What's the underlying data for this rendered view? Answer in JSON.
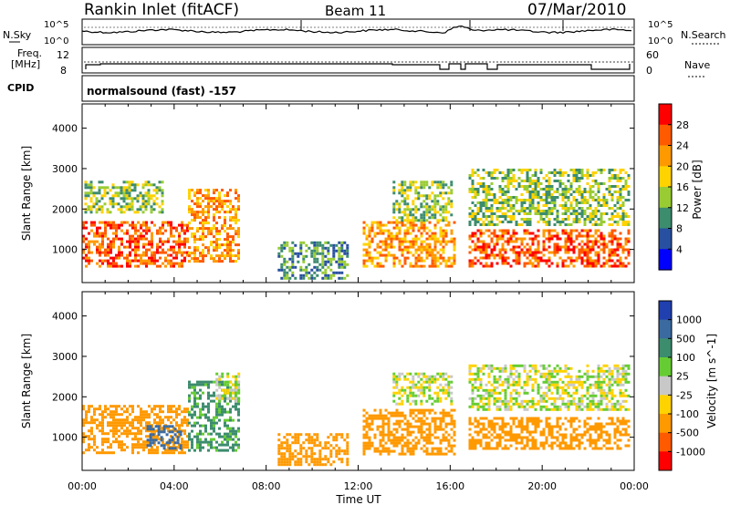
{
  "header": {
    "station": "Rankin Inlet (fitACF)",
    "beam": "Beam 11",
    "date": "07/Mar/2010"
  },
  "noise_panel": {
    "left_label": "N.Sky",
    "left_ticks": [
      "10^5",
      "10^0"
    ],
    "right_ticks": [
      "10^5",
      "10^0"
    ],
    "right_label": "N.Search"
  },
  "freq_panel": {
    "left_label_1": "Freq.",
    "left_label_2": "[MHz]",
    "left_ticks": [
      "12",
      "8"
    ],
    "right_ticks": [
      "60",
      "0"
    ],
    "right_label": "Nave"
  },
  "cpid": {
    "label": "CPID",
    "value": "normalsound (fast) -157"
  },
  "chart_data": [
    {
      "type": "heatmap",
      "panel": "power",
      "ylabel": "Slant Range [km]",
      "ylim": [
        180,
        4600
      ],
      "yticks": [
        "1000",
        "2000",
        "3000",
        "4000"
      ],
      "xlim": [
        0,
        24
      ],
      "xticks": [
        "00:00",
        "04:00",
        "08:00",
        "12:00",
        "16:00",
        "20:00",
        "00:00"
      ],
      "xlabel": "Time UT",
      "colorbar": {
        "label": "Power [dB]",
        "ticks": [
          "28",
          "24",
          "20",
          "16",
          "12",
          "8",
          "4"
        ],
        "colors": [
          "#ff0000",
          "#ff5a00",
          "#ff9900",
          "#ffd200",
          "#99cc33",
          "#3c8c6e",
          "#2850a0",
          "#0000ff"
        ]
      },
      "echo_regions": [
        {
          "t0": 0.0,
          "t1": 4.6,
          "r0": 600,
          "r1": 1700,
          "level": 24
        },
        {
          "t0": 0.1,
          "t1": 3.5,
          "r0": 1900,
          "r1": 2700,
          "level": 12
        },
        {
          "t0": 4.6,
          "t1": 6.8,
          "r0": 700,
          "r1": 2500,
          "level": 20
        },
        {
          "t0": 8.5,
          "t1": 11.5,
          "r0": 300,
          "r1": 1200,
          "level": 8
        },
        {
          "t0": 12.2,
          "t1": 16.2,
          "r0": 600,
          "r1": 1700,
          "level": 20
        },
        {
          "t0": 13.5,
          "t1": 16.0,
          "r0": 1700,
          "r1": 2700,
          "level": 12
        },
        {
          "t0": 16.8,
          "t1": 23.8,
          "r0": 600,
          "r1": 1500,
          "level": 24
        },
        {
          "t0": 16.8,
          "t1": 23.8,
          "r0": 1600,
          "r1": 3000,
          "level": 12
        }
      ]
    },
    {
      "type": "heatmap",
      "panel": "velocity",
      "ylabel": "Slant Range [km]",
      "ylim": [
        180,
        4600
      ],
      "yticks": [
        "1000",
        "2000",
        "3000",
        "4000"
      ],
      "xlim": [
        0,
        24
      ],
      "xticks": [
        "00:00",
        "04:00",
        "08:00",
        "12:00",
        "16:00",
        "20:00",
        "00:00"
      ],
      "xlabel": "Time UT",
      "colorbar": {
        "label": "Velocity [m s^-1]",
        "ticks": [
          "1000",
          "500",
          "100",
          "25",
          "-25",
          "-100",
          "-500",
          "-1000"
        ],
        "colors": [
          "#2040b0",
          "#3a6aa0",
          "#3c8c6e",
          "#66cc33",
          "#c8c8c8",
          "#ffd200",
          "#ff9900",
          "#ff5a00",
          "#ff0000"
        ]
      },
      "echo_regions": [
        {
          "t0": 0.0,
          "t1": 4.6,
          "r0": 600,
          "r1": 1800,
          "level": -300
        },
        {
          "t0": 2.8,
          "t1": 4.3,
          "r0": 700,
          "r1": 1300,
          "level": 800
        },
        {
          "t0": 4.6,
          "t1": 6.8,
          "r0": 700,
          "r1": 2400,
          "level": 150
        },
        {
          "t0": 5.8,
          "t1": 6.8,
          "r0": 1900,
          "r1": 2600,
          "level": 0
        },
        {
          "t0": 8.5,
          "t1": 11.5,
          "r0": 300,
          "r1": 1100,
          "level": -300
        },
        {
          "t0": 12.2,
          "t1": 16.2,
          "r0": 600,
          "r1": 1700,
          "level": -300
        },
        {
          "t0": 13.5,
          "t1": 16.0,
          "r0": 1800,
          "r1": 2600,
          "level": 0
        },
        {
          "t0": 16.8,
          "t1": 23.8,
          "r0": 700,
          "r1": 1500,
          "level": -300
        },
        {
          "t0": 16.8,
          "t1": 23.8,
          "r0": 1700,
          "r1": 2800,
          "level": 0
        }
      ]
    }
  ]
}
